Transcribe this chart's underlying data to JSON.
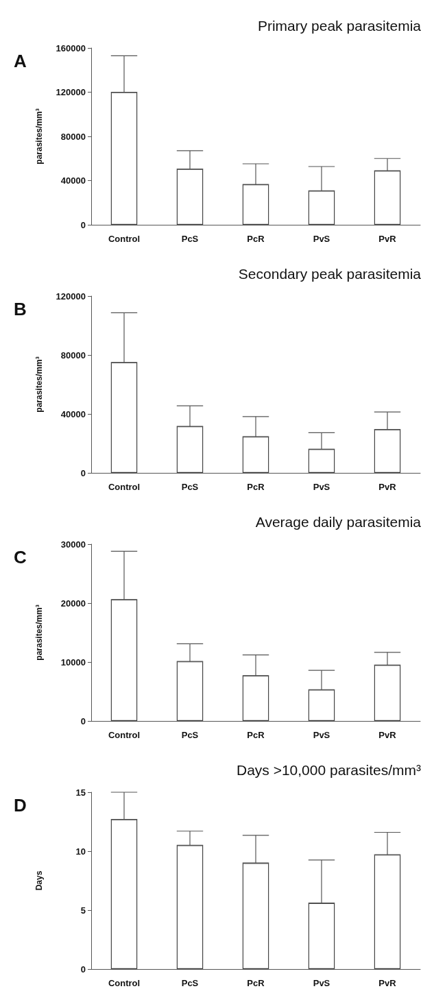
{
  "chart_data": [
    {
      "type": "bar",
      "title": "Primary peak parasitemia",
      "ylabel": "parasites/mm³",
      "annotations": [
        "A"
      ],
      "categories": [
        "Control",
        "PcS",
        "PcR",
        "PvS",
        "PvR"
      ],
      "values": [
        120000,
        50500,
        36600,
        30800,
        49000
      ],
      "errors": [
        [
          120000,
          153000
        ],
        [
          50500,
          67000
        ],
        [
          36600,
          55200
        ],
        [
          30800,
          52700
        ],
        [
          49000,
          60000
        ]
      ],
      "color": "#ffffff",
      "ylim": [
        0,
        160000
      ],
      "yticks": [
        0,
        40000,
        80000,
        120000,
        160000
      ],
      "grid": false
    },
    {
      "type": "bar",
      "title": "Secondary peak parasitemia",
      "ylabel": "parasites/mm³",
      "annotations": [
        "B"
      ],
      "categories": [
        "Control",
        "PcS",
        "PcR",
        "PvS",
        "PvR"
      ],
      "values": [
        75000,
        31600,
        24600,
        16100,
        29500
      ],
      "errors": [
        [
          75000,
          108700
        ],
        [
          31600,
          45500
        ],
        [
          24600,
          38200
        ],
        [
          16100,
          27300
        ],
        [
          29500,
          41300
        ]
      ],
      "color": "#ffffff",
      "ylim": [
        0,
        120000
      ],
      "yticks": [
        0,
        40000,
        80000,
        120000
      ],
      "grid": false
    },
    {
      "type": "bar",
      "title": "Average daily parasitemia",
      "ylabel": "parasites/mm³",
      "annotations": [
        "C"
      ],
      "categories": [
        "Control",
        "PcS",
        "PcR",
        "PvS",
        "PvR"
      ],
      "values": [
        20600,
        10100,
        7700,
        5300,
        9500
      ],
      "errors": [
        [
          20600,
          28800
        ],
        [
          10100,
          13100
        ],
        [
          7700,
          11200
        ],
        [
          5300,
          8600
        ],
        [
          9500,
          11650
        ]
      ],
      "color": "#ffffff",
      "ylim": [
        0,
        30000
      ],
      "yticks": [
        0,
        10000,
        20000,
        30000
      ],
      "grid": false
    },
    {
      "type": "bar",
      "title": "Days >10,000 parasites/mm³",
      "ylabel": "Days",
      "annotations": [
        "D"
      ],
      "categories": [
        "Control",
        "PcS",
        "PcR",
        "PvS",
        "PvR"
      ],
      "values": [
        12.7,
        10.5,
        9.0,
        5.6,
        9.7
      ],
      "errors": [
        [
          12.7,
          15.0
        ],
        [
          10.5,
          11.7
        ],
        [
          9.0,
          11.35
        ],
        [
          5.6,
          9.25
        ],
        [
          9.7,
          11.6
        ]
      ],
      "color": "#ffffff",
      "ylim": [
        0,
        15
      ],
      "yticks": [
        0,
        5,
        10,
        15
      ],
      "grid": false
    }
  ]
}
